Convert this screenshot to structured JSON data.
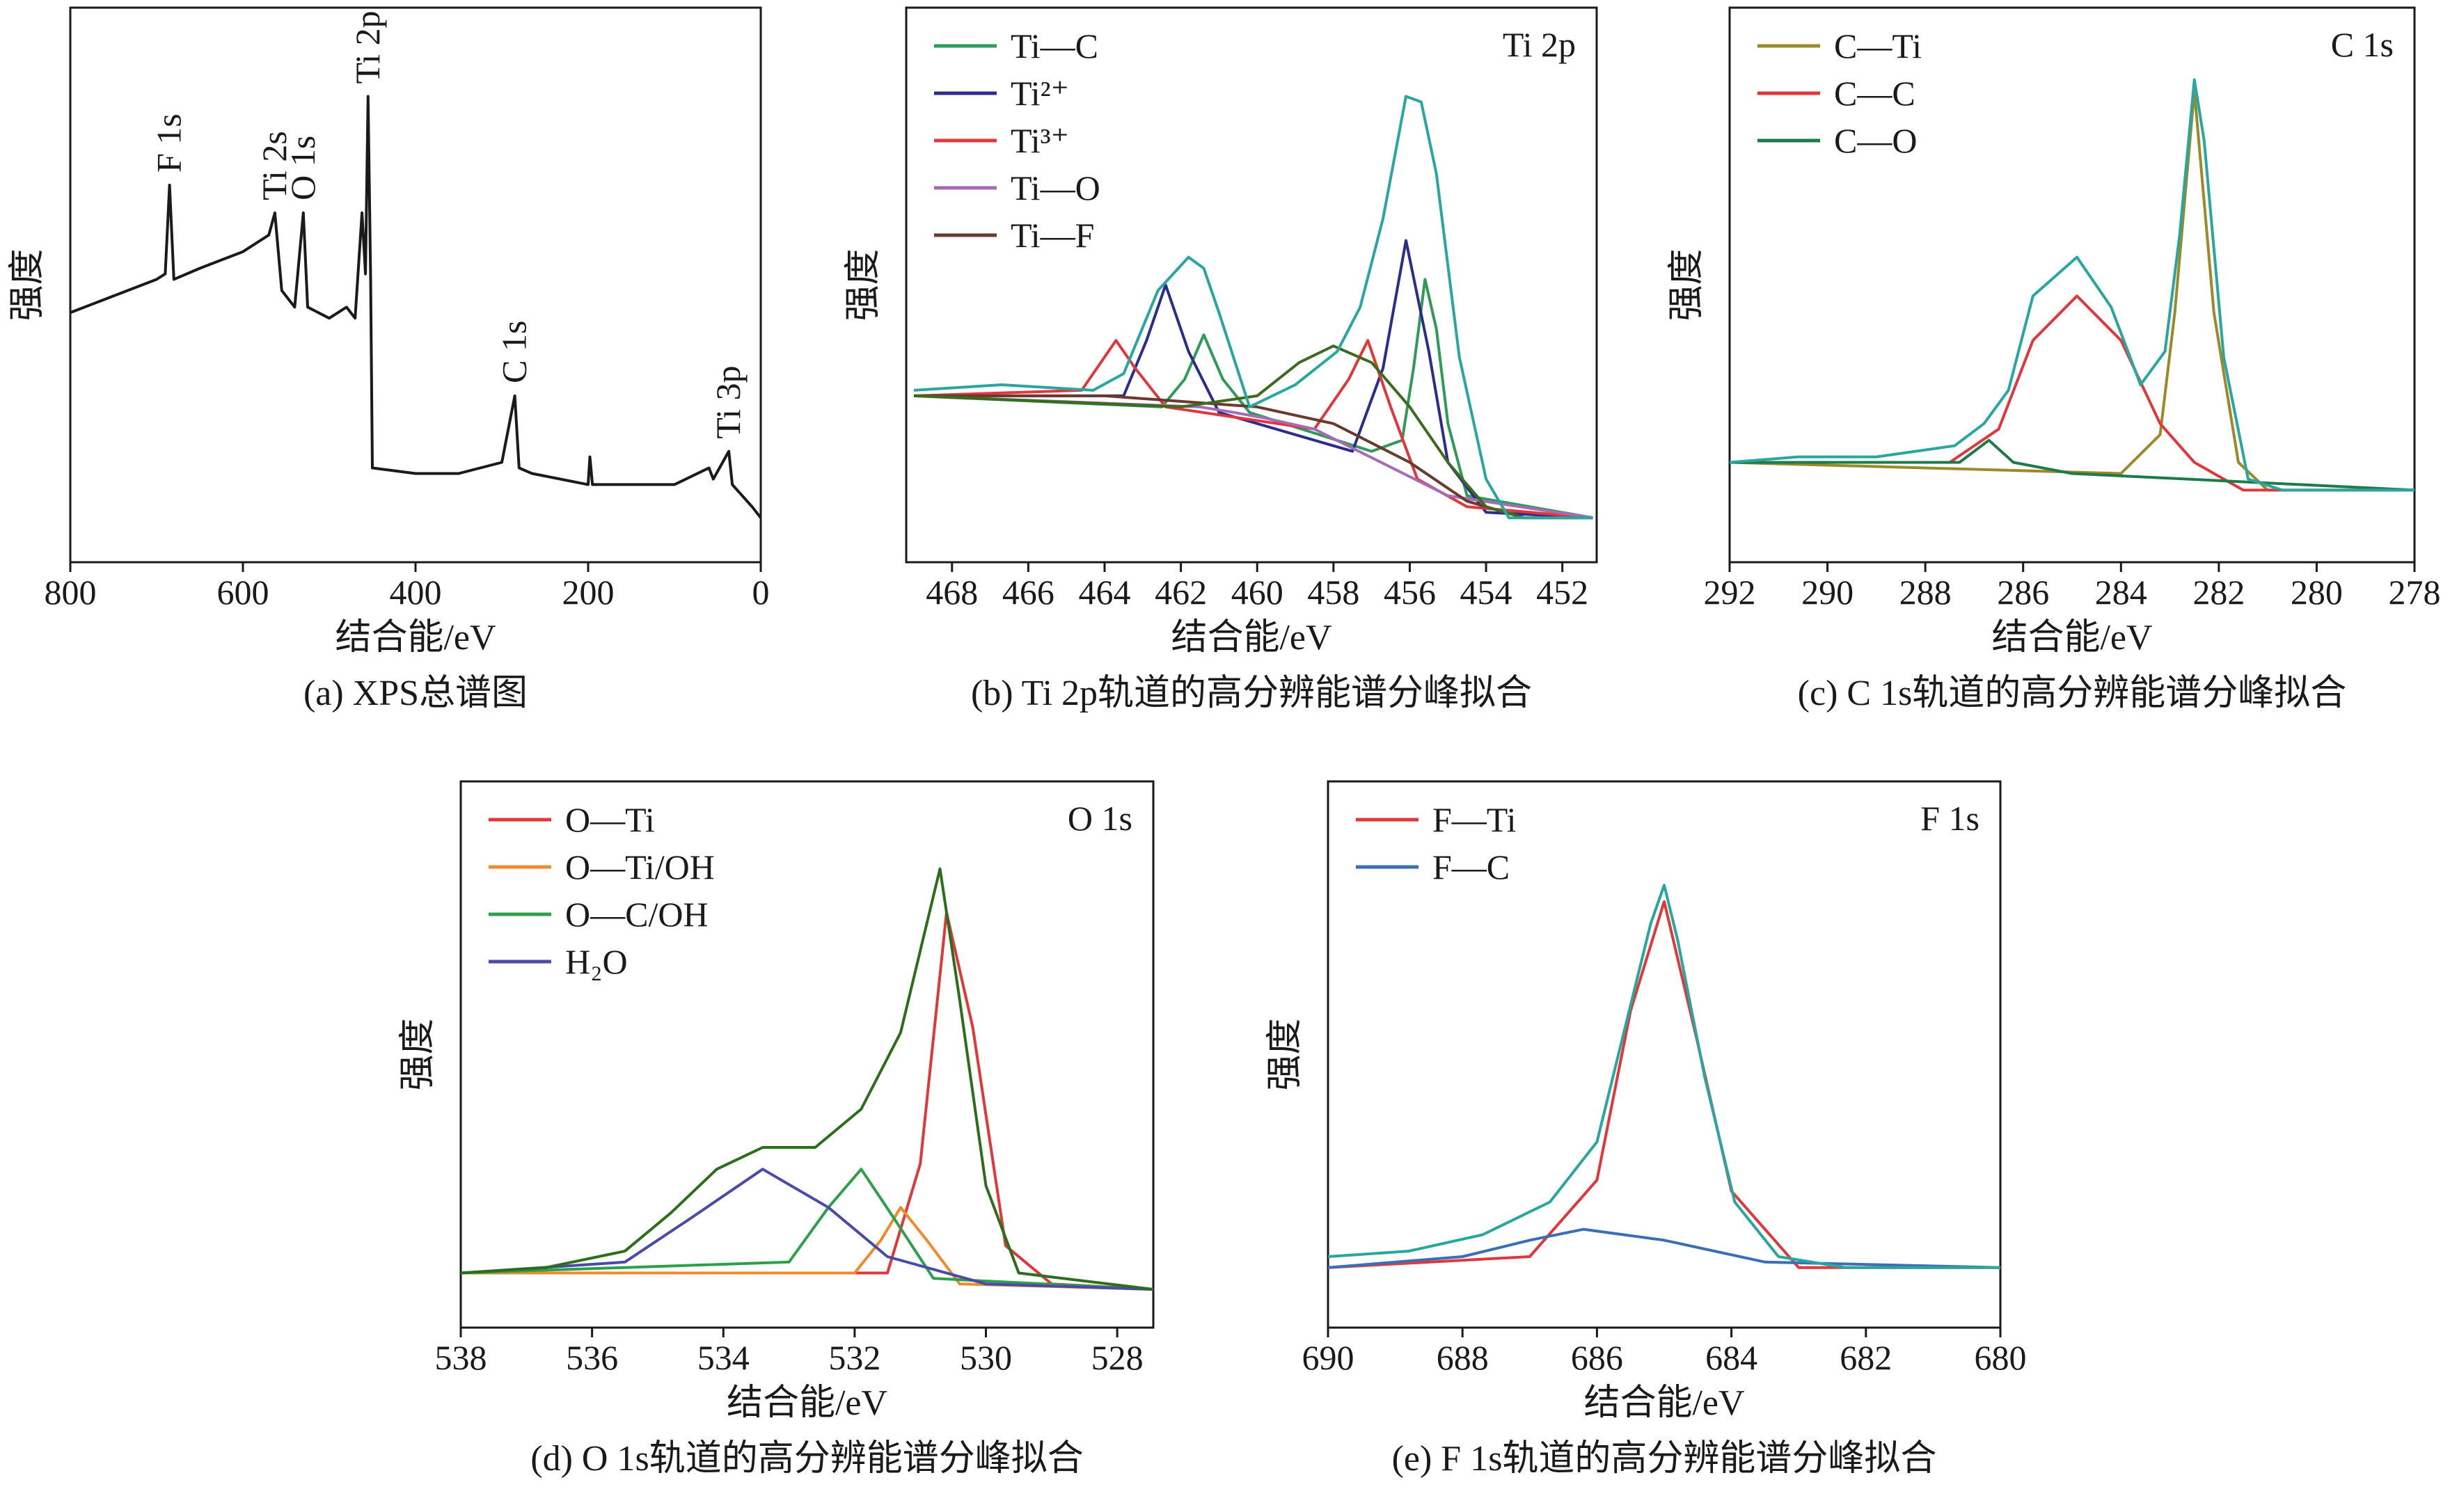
{
  "chart_data": [
    {
      "type": "line",
      "caption": "(a) XPS总谱图",
      "x_label": "结合能/eV",
      "y_label": "强度",
      "xlim": [
        800,
        0
      ],
      "xticks": [
        800,
        600,
        400,
        200,
        0
      ],
      "ylim": [
        0,
        100
      ],
      "series": [
        {
          "color": "#1a1a1a",
          "x": [
            800,
            750,
            700,
            690,
            685,
            680,
            650,
            600,
            570,
            563,
            555,
            540,
            530,
            525,
            500,
            480,
            470,
            462,
            458,
            455,
            452,
            450,
            400,
            350,
            300,
            285,
            280,
            265,
            200,
            198,
            195,
            100,
            60,
            55,
            37,
            33,
            10,
            0
          ],
          "values": [
            45,
            48,
            51,
            52,
            68,
            51,
            53,
            56,
            59,
            63,
            49,
            46,
            63,
            46,
            44,
            46,
            44,
            63,
            52,
            84,
            51,
            17,
            16,
            16,
            18,
            30,
            17,
            16,
            14,
            19,
            14,
            14,
            17,
            15,
            20,
            14,
            10,
            8
          ]
        }
      ],
      "annotations": [
        {
          "text": "F 1s",
          "x": 685
        },
        {
          "text": "Ti 2s",
          "x": 563
        },
        {
          "text": "O 1s",
          "x": 530
        },
        {
          "text": "Ti 2p",
          "x": 455
        },
        {
          "text": "C 1s",
          "x": 285
        },
        {
          "text": "Ti 3p",
          "x": 37
        }
      ]
    },
    {
      "type": "line",
      "caption": "(b) Ti 2p轨道的高分辨能谱分峰拟合",
      "x_label": "结合能/eV",
      "y_label": "强度",
      "panel_label": "Ti 2p",
      "xlim": [
        469.2,
        451.1
      ],
      "xticks": [
        468,
        466,
        464,
        462,
        460,
        458,
        456,
        454,
        452
      ],
      "ylim": [
        0,
        100
      ],
      "series": [
        {
          "name": "Ti—C",
          "color": "#2e9c58",
          "x": [
            469,
            462.5,
            461.9,
            461.4,
            460.9,
            460.2,
            457,
            456.2,
            455.9,
            455.6,
            455.3,
            455,
            454.5,
            451.2
          ],
          "values": [
            30,
            28,
            33,
            41,
            33,
            27,
            20,
            22,
            35,
            51,
            42,
            25,
            12,
            8
          ]
        },
        {
          "name": "Ti²⁺",
          "color": "#2b2d8c",
          "x": [
            469,
            463.5,
            462.9,
            462.4,
            461.8,
            461,
            457.5,
            456.7,
            456.1,
            455.5,
            455,
            454,
            451.2
          ],
          "values": [
            30,
            30,
            40,
            50,
            38,
            27,
            20,
            35,
            58,
            38,
            18,
            9,
            8
          ]
        },
        {
          "name": "Ti³⁺",
          "color": "#e0383a",
          "x": [
            469,
            464.6,
            464.1,
            463.7,
            463.2,
            462.4,
            458.5,
            457.6,
            457.1,
            456.5,
            455.8,
            454.5,
            451.2
          ],
          "values": [
            30,
            31,
            36,
            40,
            35,
            28,
            24,
            33,
            40,
            28,
            15,
            10,
            8
          ]
        },
        {
          "name": "Ti—O",
          "color": "#a66bb8",
          "x": [
            469,
            461.5,
            460.6,
            459.8,
            458.5,
            455,
            451.2
          ],
          "values": [
            30,
            28,
            27,
            26,
            24,
            12,
            8
          ]
        },
        {
          "name": "Ti—F",
          "color": "#6b3a2e",
          "x": [
            469,
            464,
            460,
            458,
            456,
            454.5,
            453,
            451.2
          ],
          "values": [
            30,
            30,
            28,
            25,
            18,
            11,
            8,
            8
          ]
        },
        {
          "color": "#3d6b1e",
          "x": [
            469,
            462,
            460,
            458.9,
            458,
            457,
            456,
            455,
            454,
            453
          ],
          "values": [
            30,
            28,
            30,
            36,
            39,
            36,
            28,
            18,
            10,
            8
          ]
        },
        {
          "color": "#29a6a0",
          "x": [
            469,
            466.7,
            464.3,
            463.5,
            462.6,
            461.8,
            461.4,
            461,
            460.2,
            459,
            457.9,
            457.3,
            456.7,
            456.1,
            455.7,
            455.3,
            454.7,
            454,
            453.4,
            451.2
          ],
          "values": [
            31,
            32,
            31,
            34,
            49,
            55,
            53,
            45,
            28,
            32,
            38,
            46,
            62,
            84,
            83,
            70,
            37,
            15,
            8,
            8
          ]
        }
      ]
    },
    {
      "type": "line",
      "caption": "(c) C 1s轨道的高分辨能谱分峰拟合",
      "x_label": "结合能/eV",
      "y_label": "强度",
      "panel_label": "C 1s",
      "xlim": [
        292,
        278
      ],
      "xticks": [
        292,
        290,
        288,
        286,
        284,
        282,
        280,
        278
      ],
      "ylim": [
        0,
        100
      ],
      "series": [
        {
          "name": "C—Ti",
          "color": "#9a8a2a",
          "x": [
            292,
            284,
            283.2,
            282.9,
            282.5,
            282.1,
            281.6,
            281,
            278
          ],
          "values": [
            18,
            16,
            23,
            45,
            85,
            45,
            18,
            13,
            13
          ]
        },
        {
          "name": "C—C",
          "color": "#e0383a",
          "x": [
            292,
            287.5,
            286.5,
            285.8,
            284.9,
            284,
            283.2,
            282.5,
            281.5,
            278
          ],
          "values": [
            18,
            18,
            24,
            40,
            48,
            40,
            25,
            18,
            13,
            13
          ]
        },
        {
          "name": "C—O",
          "color": "#1f7a4a",
          "x": [
            292,
            287.3,
            286.7,
            286.2,
            285,
            278
          ],
          "values": [
            18,
            18,
            22,
            18,
            16,
            13
          ]
        },
        {
          "color": "#29a6a0",
          "x": [
            292,
            290.6,
            289,
            287.4,
            286.8,
            286.3,
            285.8,
            284.9,
            284.2,
            283.6,
            283.1,
            282.8,
            282.5,
            282.3,
            281.9,
            281.4,
            280.7,
            278
          ],
          "values": [
            18,
            19,
            19,
            21,
            25,
            31,
            48,
            55,
            46,
            32,
            38,
            59,
            87,
            76,
            37,
            15,
            13,
            13
          ]
        }
      ]
    },
    {
      "type": "line",
      "caption": "(d) O 1s轨道的高分辨能谱分峰拟合",
      "x_label": "结合能/eV",
      "y_label": "强度",
      "panel_label": "O 1s",
      "xlim": [
        538,
        527.45
      ],
      "xticks": [
        538,
        536,
        534,
        532,
        530,
        528
      ],
      "ylim": [
        0,
        100
      ],
      "series": [
        {
          "name": "O—Ti",
          "color": "#e0383a",
          "x": [
            538,
            531.5,
            531,
            530.6,
            530.2,
            529.7,
            529,
            527.45
          ],
          "values": [
            10,
            10,
            30,
            76,
            55,
            15,
            8,
            7
          ]
        },
        {
          "name": "O—Ti/OH",
          "color": "#f08a2c",
          "x": [
            538,
            532,
            531.6,
            531.3,
            530.9,
            530.4,
            527.45
          ],
          "values": [
            10,
            10,
            16,
            22,
            16,
            8,
            7
          ]
        },
        {
          "name": "O—C/OH",
          "color": "#2ea04a",
          "x": [
            538,
            533,
            532.4,
            531.9,
            531.4,
            530.8,
            527.45
          ],
          "values": [
            10,
            12,
            22,
            29,
            20,
            9,
            7
          ]
        },
        {
          "name": "H₂O",
          "color": "#4a4aa8",
          "x": [
            538,
            535.5,
            534.5,
            533.4,
            532.4,
            531.5,
            530,
            527.45
          ],
          "values": [
            10,
            12,
            20,
            29,
            22,
            13,
            8,
            7
          ]
        },
        {
          "color": "#2c6e1c",
          "x": [
            538,
            536.7,
            535.5,
            534.8,
            534.1,
            533.4,
            532.6,
            531.9,
            531.3,
            530.9,
            530.7,
            530.4,
            530,
            529.5,
            527.45
          ],
          "values": [
            10,
            11,
            14,
            21,
            29,
            33,
            33,
            40,
            54,
            74,
            84,
            60,
            26,
            10,
            7
          ]
        }
      ]
    },
    {
      "type": "line",
      "caption": "(e) F 1s轨道的高分辨能谱分峰拟合",
      "x_label": "结合能/eV",
      "y_label": "强度",
      "panel_label": "F 1s",
      "xlim": [
        690,
        680
      ],
      "xticks": [
        690,
        688,
        686,
        684,
        682,
        680
      ],
      "ylim": [
        0,
        100
      ],
      "series": [
        {
          "name": "F—Ti",
          "color": "#e0383a",
          "x": [
            690,
            687,
            686,
            685.5,
            685,
            684.5,
            684,
            683,
            680
          ],
          "values": [
            11,
            13,
            27,
            58,
            78,
            52,
            25,
            11,
            11
          ]
        },
        {
          "name": "F—C",
          "color": "#3a6fb5",
          "x": [
            690,
            688,
            687,
            686.2,
            685,
            683.5,
            680
          ],
          "values": [
            11,
            13,
            16,
            18,
            16,
            12,
            11
          ]
        },
        {
          "color": "#29a6a0",
          "x": [
            690,
            688.8,
            687.7,
            686.7,
            686,
            685.6,
            685.2,
            685,
            684.8,
            684.4,
            683.95,
            683.3,
            682.3,
            680
          ],
          "values": [
            13,
            14,
            17,
            23,
            34,
            54,
            74,
            81,
            71,
            46,
            23,
            13,
            11,
            11
          ]
        }
      ]
    }
  ]
}
